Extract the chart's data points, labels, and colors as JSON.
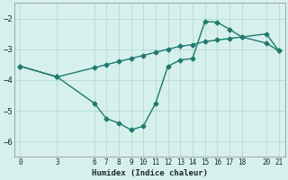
{
  "xlabel": "Humidex (Indice chaleur)",
  "background_color": "#d6f0ec",
  "grid_color": "#b8ddd8",
  "line_color": "#1e7a6e",
  "spine_color": "#999999",
  "xlim": [
    -0.5,
    21.5
  ],
  "ylim": [
    -6.5,
    -1.5
  ],
  "yticks": [
    -6,
    -5,
    -4,
    -3,
    -2
  ],
  "xticks": [
    0,
    3,
    6,
    7,
    8,
    9,
    10,
    11,
    12,
    13,
    14,
    15,
    16,
    17,
    18,
    20,
    21
  ],
  "line1_x": [
    0,
    3,
    6,
    7,
    8,
    9,
    10,
    11,
    12,
    13,
    14,
    15,
    16,
    17,
    18,
    20,
    21
  ],
  "line1_y": [
    -3.55,
    -3.9,
    -4.75,
    -5.25,
    -5.4,
    -5.62,
    -5.5,
    -4.75,
    -3.55,
    -3.35,
    -3.3,
    -2.1,
    -2.12,
    -2.35,
    -2.6,
    -2.8,
    -3.05
  ],
  "line2_x": [
    0,
    3,
    6,
    7,
    8,
    9,
    10,
    11,
    12,
    13,
    14,
    15,
    16,
    17,
    18,
    20,
    21
  ],
  "line2_y": [
    -3.55,
    -3.9,
    -3.6,
    -3.5,
    -3.4,
    -3.3,
    -3.2,
    -3.1,
    -3.0,
    -2.9,
    -2.85,
    -2.75,
    -2.7,
    -2.65,
    -2.6,
    -2.5,
    -3.05
  ],
  "markersize": 2.5,
  "linewidth": 1.0
}
